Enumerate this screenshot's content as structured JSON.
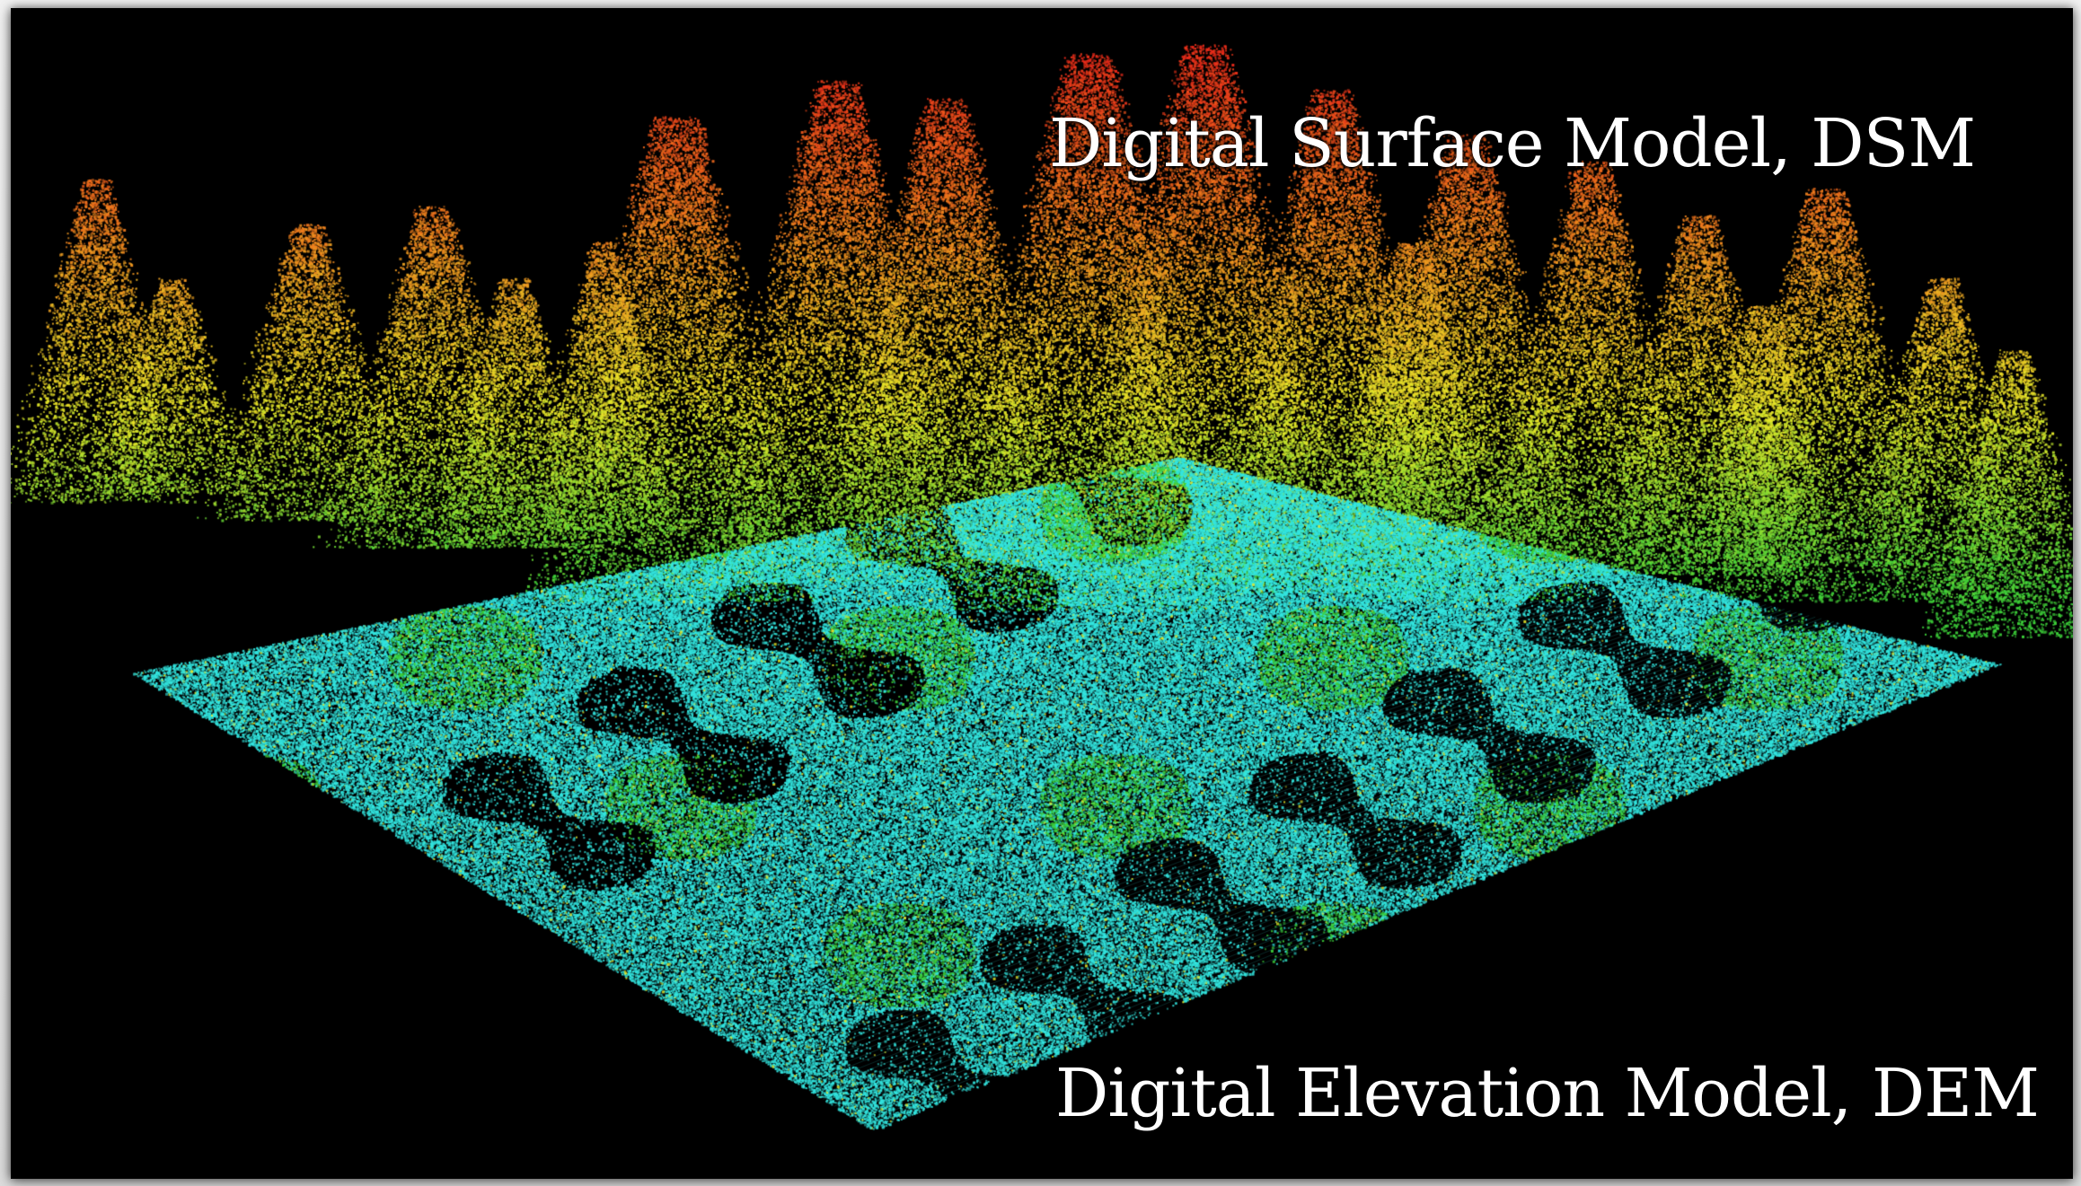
{
  "labels": {
    "surface_model": "Digital Surface Model, DSM",
    "elevation_model": "Digital Elevation Model, DEM"
  },
  "palette": {
    "background": "#000000",
    "frame": "#e9e9e9",
    "text": "#ffffff",
    "ground": "#33e6e0",
    "canopy_low": "#3dd23a",
    "canopy_mid": "#e8e82a",
    "canopy_high": "#f07a1e",
    "canopy_top": "#e8281a"
  }
}
